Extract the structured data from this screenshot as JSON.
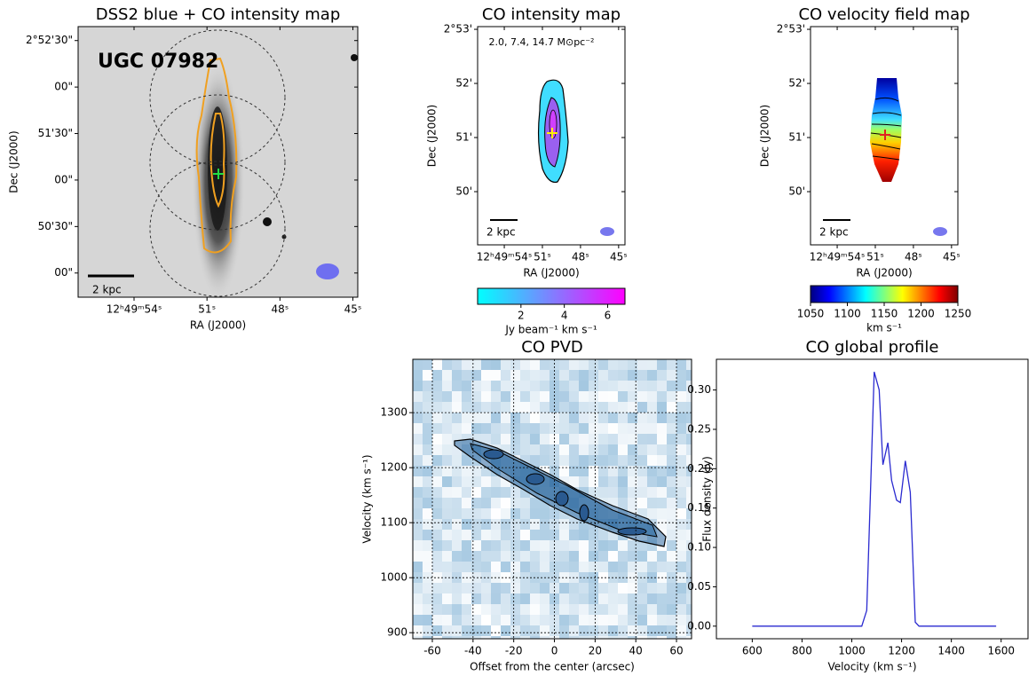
{
  "chart_data": [
    {
      "type": "map",
      "title": "DSS2 blue + CO intensity map",
      "xlabel": "RA (J2000)",
      "ylabel": "Dec (J2000)",
      "xlim": [
        56.3,
        44.8
      ],
      "ylim": [
        -15.6,
        159
      ],
      "xticks": [
        {
          "value": 54,
          "label": "12ʰ49ᵐ54ˢ"
        },
        {
          "value": 51,
          "label": "51ˢ"
        },
        {
          "value": 48,
          "label": "48ˢ"
        },
        {
          "value": 45,
          "label": "45ˢ"
        }
      ],
      "yticks": [
        {
          "value": 150,
          "label": "2°52'30\""
        },
        {
          "value": 120,
          "label": "00\""
        },
        {
          "value": 90,
          "label": "51'30\""
        },
        {
          "value": 60,
          "label": "00\""
        },
        {
          "value": 30,
          "label": "50'30\""
        },
        {
          "value": 0,
          "label": "00\""
        }
      ],
      "annotations": [
        "UGC 07982",
        "2 kpc"
      ]
    },
    {
      "type": "map",
      "title": "CO intensity map",
      "xlabel": "RA (J2000)",
      "ylabel": "Dec (J2000)",
      "xlim": [
        56.1,
        44.5
      ],
      "ylim": [
        -59,
        183
      ],
      "xticks": [
        {
          "value": 54,
          "label": "12ʰ49ᵐ54ˢ"
        },
        {
          "value": 51,
          "label": "51ˢ"
        },
        {
          "value": 48,
          "label": "48ˢ"
        },
        {
          "value": 45,
          "label": "45ˢ"
        }
      ],
      "yticks": [
        {
          "value": 180,
          "label": "2°53'"
        },
        {
          "value": 120,
          "label": "52'"
        },
        {
          "value": 60,
          "label": "51'"
        },
        {
          "value": 0,
          "label": "50'"
        }
      ],
      "annotations": [
        "2.0, 7.4, 14.7 M⊙pc⁻²",
        "2 kpc"
      ],
      "colorbar": {
        "label": "Jy beam⁻¹ km s⁻¹",
        "lim": [
          0,
          6.8
        ],
        "ticks": [
          2,
          4,
          6
        ],
        "colors": [
          "#00ffff",
          "#ff00ff"
        ]
      }
    },
    {
      "type": "map",
      "title": "CO velocity field map",
      "xlabel": "RA (J2000)",
      "ylabel": "Dec (J2000)",
      "xlim": [
        56.1,
        44.5
      ],
      "ylim": [
        -59,
        183
      ],
      "xticks": [
        {
          "value": 54,
          "label": "12ʰ49ᵐ54ˢ"
        },
        {
          "value": 51,
          "label": "51ˢ"
        },
        {
          "value": 48,
          "label": "48ˢ"
        },
        {
          "value": 45,
          "label": "45ˢ"
        }
      ],
      "yticks": [
        {
          "value": 180,
          "label": "2°53'"
        },
        {
          "value": 120,
          "label": "52'"
        },
        {
          "value": 60,
          "label": "51'"
        },
        {
          "value": 0,
          "label": "50'"
        }
      ],
      "annotations": [
        "2 kpc"
      ],
      "colorbar": {
        "label": "km s⁻¹",
        "lim": [
          1050,
          1250
        ],
        "ticks": [
          1050,
          1100,
          1150,
          1200,
          1250
        ],
        "colors": [
          "#00007f",
          "#0000ff",
          "#007fff",
          "#00ffff",
          "#7fff7f",
          "#ffff00",
          "#ff7f00",
          "#ff0000",
          "#7f0000"
        ]
      }
    },
    {
      "type": "pvd",
      "title": "CO PVD",
      "xlabel": "Offset from the center (arcsec)",
      "ylabel": "Velocity (km s⁻¹)",
      "xlim": [
        -69.6,
        67.4
      ],
      "xticks": [
        -60,
        -40,
        -20,
        0,
        20,
        40,
        60
      ],
      "ylim": [
        889,
        1397
      ],
      "yticks": [
        900,
        1000,
        1100,
        1200,
        1300
      ],
      "grid": true
    },
    {
      "type": "line",
      "title": "CO global profile",
      "xlabel": "Velocity (km s⁻¹)",
      "ylabel": "Flux density (Jy)",
      "xlim": [
        456,
        1708
      ],
      "xticks": [
        600,
        800,
        1000,
        1200,
        1400,
        1600
      ],
      "ylim": [
        -0.016,
        0.339
      ],
      "yticks": [
        {
          "value": 0,
          "label": "0.00"
        },
        0.05,
        {
          "value": 0.1,
          "label": "0.10"
        },
        0.15,
        {
          "value": 0.2,
          "label": "0.20"
        },
        0.25,
        {
          "value": 0.3,
          "label": "0.30"
        }
      ],
      "x": [
        600,
        1040,
        1060,
        1080,
        1090,
        1110,
        1125,
        1145,
        1160,
        1180,
        1195,
        1215,
        1235,
        1255,
        1270,
        1580
      ],
      "values": [
        0,
        0,
        0.02,
        0.22,
        0.323,
        0.3,
        0.205,
        0.233,
        0.185,
        0.16,
        0.157,
        0.21,
        0.17,
        0.005,
        0,
        0
      ],
      "color": "#2b2bd0"
    }
  ]
}
